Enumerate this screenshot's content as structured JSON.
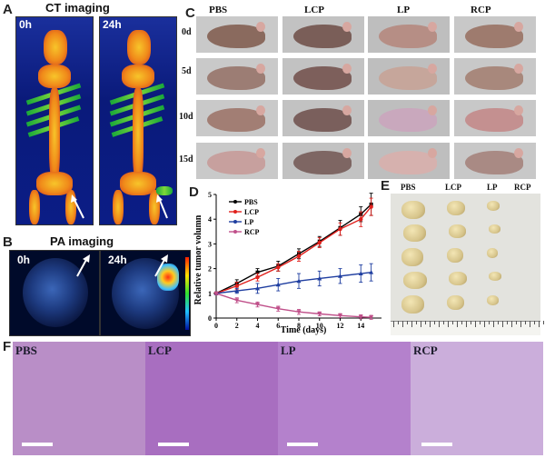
{
  "panels": {
    "A": {
      "label": "A",
      "title": "CT imaging",
      "times": [
        "0h",
        "24h"
      ]
    },
    "B": {
      "label": "B",
      "title": "PA imaging",
      "times": [
        "0h",
        "24h"
      ]
    },
    "C": {
      "label": "C",
      "groups": [
        "PBS",
        "LCP",
        "LP",
        "RCP"
      ],
      "days": [
        "0d",
        "5d",
        "10d",
        "15d"
      ]
    },
    "D": {
      "label": "D"
    },
    "E": {
      "label": "E",
      "groups": [
        "PBS",
        "LCP",
        "LP",
        "RCP"
      ]
    },
    "F": {
      "label": "F",
      "groups": [
        "PBS",
        "LCP",
        "LP",
        "RCP"
      ]
    }
  },
  "colors": {
    "PBS": "#000000",
    "LCP": "#e0201c",
    "LP": "#1f3ea0",
    "RCP": "#c0508a"
  },
  "chart_data": {
    "type": "line",
    "xlabel": "Time (days)",
    "ylabel": "Relative tumor volumn",
    "xlim": [
      0,
      16
    ],
    "ylim": [
      0,
      5
    ],
    "xticks": [
      0,
      2,
      4,
      6,
      8,
      10,
      12,
      14
    ],
    "yticks": [
      0,
      1,
      2,
      3,
      4,
      5
    ],
    "legend_position": "top-left",
    "x": [
      0,
      2,
      4,
      6,
      8,
      10,
      12,
      14,
      15
    ],
    "series": [
      {
        "name": "PBS",
        "values": [
          1.0,
          1.4,
          1.85,
          2.1,
          2.6,
          3.1,
          3.65,
          4.2,
          4.6
        ],
        "errors": [
          0.05,
          0.15,
          0.15,
          0.2,
          0.2,
          0.2,
          0.3,
          0.3,
          0.45
        ]
      },
      {
        "name": "LCP",
        "values": [
          1.0,
          1.3,
          1.65,
          2.05,
          2.5,
          3.05,
          3.6,
          4.0,
          4.5
        ],
        "errors": [
          0.05,
          0.15,
          0.15,
          0.15,
          0.2,
          0.2,
          0.25,
          0.3,
          0.35
        ]
      },
      {
        "name": "LP",
        "values": [
          1.0,
          1.1,
          1.2,
          1.35,
          1.5,
          1.6,
          1.7,
          1.8,
          1.85
        ],
        "errors": [
          0.05,
          0.1,
          0.2,
          0.25,
          0.3,
          0.3,
          0.3,
          0.35,
          0.35
        ]
      },
      {
        "name": "RCP",
        "values": [
          1.0,
          0.72,
          0.55,
          0.38,
          0.25,
          0.17,
          0.1,
          0.05,
          0.03
        ],
        "errors": [
          0.05,
          0.1,
          0.1,
          0.1,
          0.1,
          0.08,
          0.08,
          0.08,
          0.08
        ]
      }
    ]
  }
}
